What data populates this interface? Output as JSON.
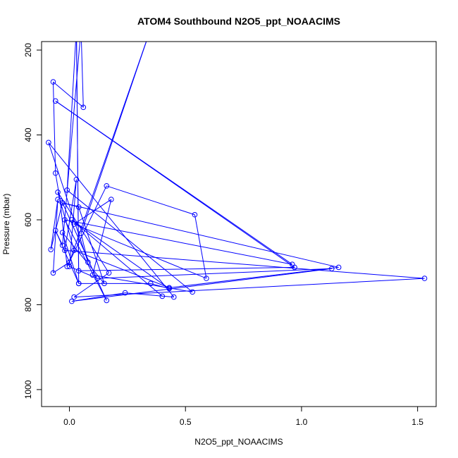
{
  "chart_data": {
    "type": "line",
    "title": "ATOM4 Southbound N2O5_ppt_NOAACIMS",
    "xlabel": "N2O5_ppt_NOAACIMS",
    "ylabel": "Pressure (mbar)",
    "xlim": [
      -0.12,
      1.58
    ],
    "ylim": [
      1040,
      180
    ],
    "y_inverted": true,
    "grid": false,
    "x_ticks": [
      {
        "value": 0.0,
        "label": "0.0"
      },
      {
        "value": 0.5,
        "label": "0.5"
      },
      {
        "value": 1.0,
        "label": "1.0"
      },
      {
        "value": 1.5,
        "label": "1.5"
      }
    ],
    "y_ticks": [
      {
        "value": 200,
        "label": "200"
      },
      {
        "value": 400,
        "label": "400"
      },
      {
        "value": 600,
        "label": "600"
      },
      {
        "value": 800,
        "label": "800"
      },
      {
        "value": 1000,
        "label": "1000"
      }
    ],
    "colors": {
      "series": "#0000ff",
      "axis": "#000000"
    },
    "series": [
      {
        "points": [
          {
            "x": 0.03,
            "y": 130
          },
          {
            "x": 0.04,
            "y": 750
          },
          {
            "x": -0.06,
            "y": 625
          },
          {
            "x": -0.03,
            "y": 660
          },
          {
            "x": 0.05,
            "y": 150
          },
          {
            "x": 0.06,
            "y": 335
          },
          {
            "x": -0.07,
            "y": 275
          },
          {
            "x": -0.06,
            "y": 490
          },
          {
            "x": -0.04,
            "y": 555
          },
          {
            "x": -0.01,
            "y": 710
          },
          {
            "x": 0.16,
            "y": 520
          },
          {
            "x": 0.54,
            "y": 588
          },
          {
            "x": 0.59,
            "y": 738
          },
          {
            "x": 0.02,
            "y": 610
          },
          {
            "x": 0.18,
            "y": 552
          },
          {
            "x": 0.1,
            "y": 730
          },
          {
            "x": 0.53,
            "y": 770
          },
          {
            "x": -0.01,
            "y": 530
          },
          {
            "x": 0.03,
            "y": 150
          },
          {
            "x": 0.04,
            "y": 720
          },
          {
            "x": 0.97,
            "y": 712
          },
          {
            "x": -0.06,
            "y": 320
          },
          {
            "x": 0.96,
            "y": 705
          },
          {
            "x": -0.02,
            "y": 600
          },
          {
            "x": 0.16,
            "y": 790
          },
          {
            "x": -0.03,
            "y": 560
          },
          {
            "x": 1.16,
            "y": 712
          },
          {
            "x": 0.43,
            "y": 760
          },
          {
            "x": 0.02,
            "y": 672
          },
          {
            "x": -0.05,
            "y": 535
          },
          {
            "x": 0.17,
            "y": 725
          },
          {
            "x": 0.02,
            "y": 782
          },
          {
            "x": 1.53,
            "y": 738
          },
          {
            "x": -0.02,
            "y": 672
          },
          {
            "x": 0.03,
            "y": 505
          },
          {
            "x": 0.0,
            "y": 710
          },
          {
            "x": 0.12,
            "y": 738
          },
          {
            "x": 1.13,
            "y": 715
          },
          {
            "x": 0.01,
            "y": 792
          },
          {
            "x": 0.24,
            "y": 772
          },
          {
            "x": 0.45,
            "y": 782
          },
          {
            "x": -0.09,
            "y": 418
          },
          {
            "x": 0.08,
            "y": 700
          },
          {
            "x": 0.05,
            "y": 632
          },
          {
            "x": 0.35,
            "y": 150
          },
          {
            "x": 0.0,
            "y": 700
          },
          {
            "x": -0.07,
            "y": 725
          },
          {
            "x": -0.05,
            "y": 552
          },
          {
            "x": -0.08,
            "y": 670
          },
          {
            "x": -0.03,
            "y": 560
          },
          {
            "x": 0.04,
            "y": 570
          },
          {
            "x": 0.15,
            "y": 750
          },
          {
            "x": -0.03,
            "y": 630
          },
          {
            "x": 0.04,
            "y": 750
          },
          {
            "x": 0.35,
            "y": 750
          },
          {
            "x": 0.43,
            "y": 762
          },
          {
            "x": 0.01,
            "y": 600
          },
          {
            "x": 0.4,
            "y": 780
          }
        ]
      }
    ]
  }
}
